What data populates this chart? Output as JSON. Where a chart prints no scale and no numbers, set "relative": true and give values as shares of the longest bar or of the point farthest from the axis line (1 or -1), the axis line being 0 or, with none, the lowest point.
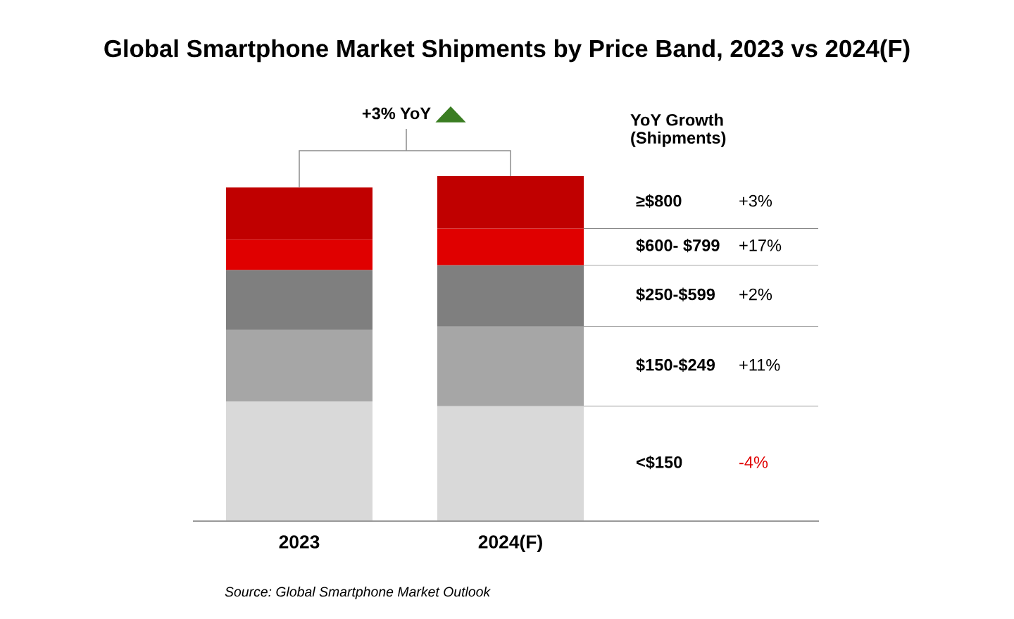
{
  "chart_data": {
    "type": "bar",
    "title": "Global Smartphone Market Shipments by Price Band, 2023 vs 2024(F)",
    "categories": [
      "2023",
      "2024(F)"
    ],
    "stacked": true,
    "relative": true,
    "legend_title": "YoY Growth\n(Shipments)",
    "series": [
      {
        "name": "<$150",
        "color": "#d9d9d9",
        "values": [
          0.347,
          0.333
        ]
      },
      {
        "name": "$150-$249",
        "color": "#a6a6a6",
        "values": [
          0.208,
          0.231
        ]
      },
      {
        "name": "$250-$599",
        "color": "#7f7f7f",
        "values": [
          0.173,
          0.178
        ]
      },
      {
        "name": "$600- $799",
        "color": "#e00000",
        "values": [
          0.088,
          0.106
        ]
      },
      {
        "name": "≥$800",
        "color": "#c00000",
        "values": [
          0.151,
          0.152
        ]
      }
    ],
    "annotations": [
      "-4%",
      "+11%",
      "+2%",
      "+17%",
      "+3%",
      "+3% YoY",
      "Source: Global Smartphone Market Outlook"
    ]
  }
}
